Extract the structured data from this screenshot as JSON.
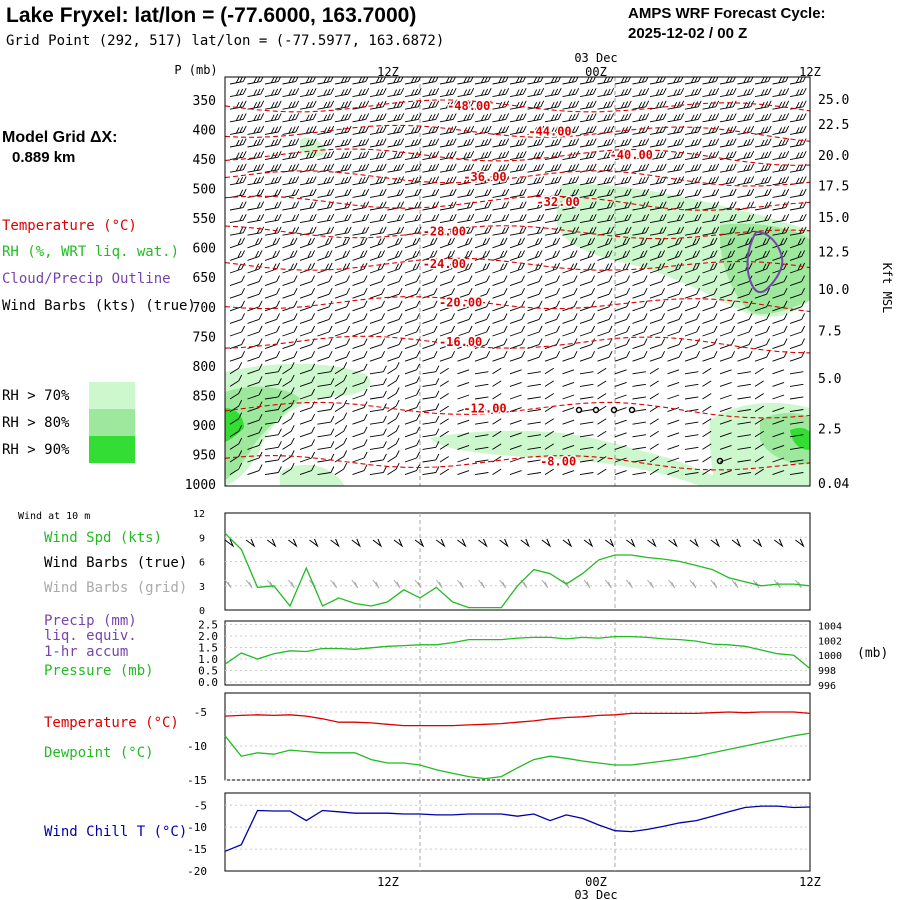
{
  "header": {
    "title": "Lake Fryxel:  lat/lon = (-77.6000, 163.7000)",
    "subtitle": "Grid Point (292, 517) lat/lon = (-77.5977, 163.6872)",
    "cycle_line1": "AMPS WRF Forecast Cycle:",
    "cycle_line2": "2025-12-02 / 00  Z"
  },
  "left_legend": {
    "model_grid": "Model Grid ΔX:",
    "model_grid_value": "0.889 km",
    "temperature": "Temperature (°C)",
    "rh": "RH (%, WRT liq. wat.)",
    "cloud": "Cloud/Precip Outline",
    "wind_barbs": "Wind Barbs (kts) (true)",
    "rh70": "RH > 70%",
    "rh80": "RH > 80%",
    "rh90": "RH > 90%"
  },
  "colors": {
    "temperature": "#dd0000",
    "rh70": "#cdf7cd",
    "rh80": "#9de89d",
    "rh90": "#33dd33",
    "cloud": "#7744aa",
    "wind_chill": "#0000aa",
    "dewpoint": "#22bb22",
    "grid_barbs": "#aaaaaa"
  },
  "time_axis": {
    "ticks": [
      "12Z",
      "00Z",
      "12Z"
    ],
    "date": "03 Dec"
  },
  "chart_data": [
    {
      "type": "heatmap",
      "name": "cross-section",
      "y_axis_label": "P (mb)",
      "pressure_levels": [
        350,
        400,
        450,
        500,
        550,
        600,
        650,
        700,
        750,
        800,
        850,
        900,
        950,
        1000
      ],
      "right_axis_label": "Kft MSL",
      "height_kft": [
        "25.0",
        "22.5",
        "20.0",
        "17.5",
        "15.0",
        "12.5",
        "10.0",
        "7.5",
        "5.0",
        "2.5",
        "0.04"
      ],
      "height_kft_pressure": [
        350,
        392,
        445,
        496,
        550,
        608,
        672,
        742,
        822,
        908,
        1000
      ],
      "isotherm_labels": [
        {
          "label": "-48.00",
          "hour": 15,
          "p": 360
        },
        {
          "label": "-44.00",
          "hour": 20,
          "p": 403
        },
        {
          "label": "-40.00",
          "hour": 25,
          "p": 443
        },
        {
          "label": "-36.00",
          "hour": 16,
          "p": 480
        },
        {
          "label": "-32.00",
          "hour": 20.5,
          "p": 523
        },
        {
          "label": "-28.00",
          "hour": 13.5,
          "p": 573
        },
        {
          "label": "-24.00",
          "hour": 13.5,
          "p": 628
        },
        {
          "label": "-20.00",
          "hour": 14.5,
          "p": 693
        },
        {
          "label": "-16.00",
          "hour": 14.5,
          "p": 760
        },
        {
          "label": "-12.00",
          "hour": 16,
          "p": 872
        },
        {
          "label": "-8.00",
          "hour": 20.5,
          "p": 962
        }
      ]
    },
    {
      "type": "line",
      "name": "wind-10m",
      "title": "Wind at 10 m",
      "series_label": "Wind Spd (kts)",
      "barbs_true_label": "Wind Barbs (true)",
      "barbs_grid_label": "Wind Barbs (grid)",
      "ylim": [
        0,
        12
      ],
      "yticks": [
        "0",
        "3",
        "6",
        "9",
        "12"
      ],
      "x_hours": [
        0,
        1,
        2,
        3,
        4,
        5,
        6,
        7,
        8,
        9,
        10,
        11,
        12,
        13,
        14,
        15,
        16,
        17,
        18,
        19,
        20,
        21,
        22,
        23,
        24,
        25,
        26,
        27,
        28,
        29,
        30,
        31,
        32,
        33,
        34,
        35,
        36
      ],
      "values": [
        9.5,
        7.5,
        2.8,
        3.0,
        0.5,
        5.2,
        0.5,
        1.5,
        0.8,
        0.5,
        1.0,
        2.5,
        1.5,
        2.8,
        1.0,
        0.3,
        0.3,
        0.3,
        3.0,
        5.0,
        4.5,
        3.2,
        4.5,
        6.2,
        6.8,
        6.8,
        6.5,
        6.3,
        6.0,
        5.5,
        5.0,
        4.0,
        3.5,
        3.0,
        3.2,
        3.2,
        3.0
      ]
    },
    {
      "type": "line",
      "name": "precip-pressure",
      "precip_label": "Precip (mm)",
      "precip_sub1": "liq. equiv.",
      "precip_sub2": "1-hr accum",
      "series_label": "Pressure (mb)",
      "left_yticks": [
        "0.0",
        "0.5",
        "1.0",
        "1.5",
        "2.0",
        "2.5"
      ],
      "right_yticks": [
        "996",
        "998",
        "1000",
        "1002",
        "1004"
      ],
      "right_unit": "(mb)",
      "ylim_right": [
        996,
        1004.6
      ],
      "x_hours": [
        0,
        1,
        2,
        3,
        4,
        5,
        6,
        7,
        8,
        9,
        10,
        11,
        12,
        13,
        14,
        15,
        16,
        17,
        18,
        19,
        20,
        21,
        22,
        23,
        24,
        25,
        26,
        27,
        28,
        29,
        30,
        31,
        32,
        33,
        34,
        35,
        36
      ],
      "values": [
        998.8,
        1000.3,
        999.5,
        1000.2,
        1000.6,
        1000.5,
        1000.9,
        1000.9,
        1000.8,
        1001.0,
        1001.2,
        1001.3,
        1001.4,
        1001.4,
        1001.7,
        1002.1,
        1002.1,
        1002.1,
        1002.3,
        1002.4,
        1002.4,
        1002.2,
        1002.4,
        1002.3,
        1002.5,
        1002.5,
        1002.4,
        1002.2,
        1002.1,
        1001.9,
        1001.5,
        1001.4,
        1001.2,
        1000.7,
        1000.2,
        1000.0,
        998.2
      ]
    },
    {
      "type": "line",
      "name": "temp-dewpoint",
      "temperature_label": "Temperature (°C)",
      "dewpoint_label": "Dewpoint (°C)",
      "yticks": [
        "-5",
        "-10",
        "-15"
      ],
      "ylim": [
        -15,
        -2.2
      ],
      "x_hours": [
        0,
        1,
        2,
        3,
        4,
        5,
        6,
        7,
        8,
        9,
        10,
        11,
        12,
        13,
        14,
        15,
        16,
        17,
        18,
        19,
        20,
        21,
        22,
        23,
        24,
        25,
        26,
        27,
        28,
        29,
        30,
        31,
        32,
        33,
        34,
        35,
        36
      ],
      "series": [
        {
          "name": "Temperature",
          "values": [
            -5.6,
            -5.5,
            -5.4,
            -5.5,
            -5.4,
            -5.6,
            -6.0,
            -6.5,
            -6.5,
            -6.6,
            -6.8,
            -7.0,
            -7.0,
            -7.0,
            -7.0,
            -6.9,
            -6.8,
            -6.7,
            -6.5,
            -6.3,
            -6.0,
            -5.8,
            -5.7,
            -5.5,
            -5.4,
            -5.2,
            -5.2,
            -5.2,
            -5.2,
            -5.2,
            -5.1,
            -5.0,
            -5.1,
            -5.0,
            -5.0,
            -5.0,
            -5.2
          ]
        },
        {
          "name": "Dewpoint",
          "values": [
            -8.5,
            -11.5,
            -11.0,
            -11.2,
            -10.6,
            -10.8,
            -11.0,
            -11.0,
            -11.0,
            -12.0,
            -12.5,
            -12.5,
            -12.8,
            -13.5,
            -14.0,
            -14.5,
            -14.8,
            -14.5,
            -13.2,
            -12.0,
            -11.5,
            -11.8,
            -12.2,
            -12.5,
            -12.8,
            -12.8,
            -12.5,
            -12.2,
            -11.9,
            -11.5,
            -11.0,
            -10.5,
            -10.0,
            -9.5,
            -9.0,
            -8.5,
            -8.1
          ]
        }
      ]
    },
    {
      "type": "line",
      "name": "wind-chill",
      "series_label": "Wind Chill T (°C)",
      "yticks": [
        "-5",
        "-10",
        "-15",
        "-20"
      ],
      "ylim": [
        -20,
        -2.2
      ],
      "x_hours": [
        0,
        1,
        2,
        3,
        4,
        5,
        6,
        7,
        8,
        9,
        10,
        11,
        12,
        13,
        14,
        15,
        16,
        17,
        18,
        19,
        20,
        21,
        22,
        23,
        24,
        25,
        26,
        27,
        28,
        29,
        30,
        31,
        32,
        33,
        34,
        35,
        36
      ],
      "values": [
        -15.5,
        -14.0,
        -6.2,
        -6.3,
        -6.3,
        -8.5,
        -6.2,
        -6.5,
        -6.8,
        -6.8,
        -6.8,
        -7.0,
        -7.0,
        -7.2,
        -7.2,
        -7.0,
        -7.0,
        -7.0,
        -7.5,
        -7.0,
        -8.5,
        -7.2,
        -8.0,
        -9.5,
        -10.8,
        -11.0,
        -10.5,
        -9.8,
        -9.0,
        -8.5,
        -7.5,
        -6.5,
        -5.5,
        -5.2,
        -5.2,
        -5.5,
        -5.4
      ]
    }
  ]
}
